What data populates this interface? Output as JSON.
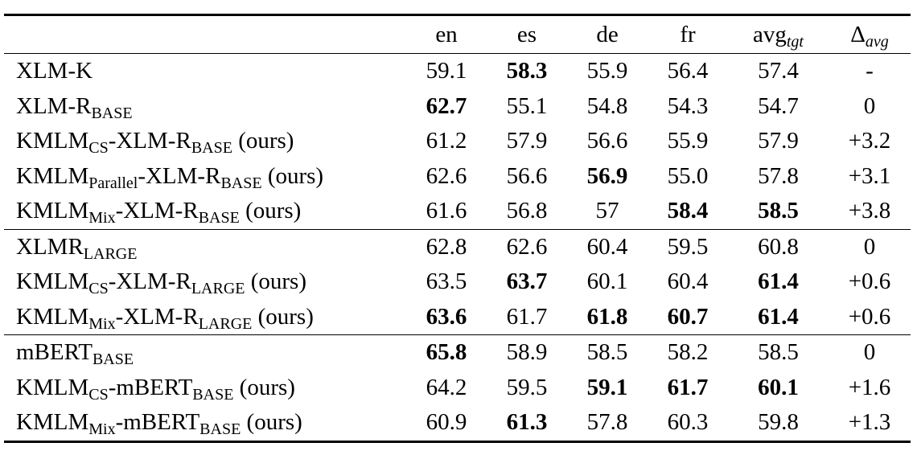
{
  "header": [
    [],
    [
      {
        "text": "en"
      }
    ],
    [
      {
        "text": "es"
      }
    ],
    [
      {
        "text": "de"
      }
    ],
    [
      {
        "text": "fr"
      }
    ],
    [
      {
        "text": "avg"
      },
      {
        "sub": "tgt",
        "italic": true
      }
    ],
    [
      {
        "text": "Δ"
      },
      {
        "sub": "avg",
        "italic": true
      }
    ]
  ],
  "groups": [
    {
      "rows": [
        {
          "name": [
            {
              "text": "XLM-K"
            }
          ],
          "cells": [
            "59.1",
            "58.3",
            "55.9",
            "56.4",
            "57.4",
            "-"
          ],
          "bold": [
            false,
            true,
            false,
            false,
            false,
            false
          ]
        },
        {
          "name": [
            {
              "text": "XLM-R"
            },
            {
              "sub": "BASE"
            }
          ],
          "cells": [
            "62.7",
            "55.1",
            "54.8",
            "54.3",
            "54.7",
            "0"
          ],
          "bold": [
            true,
            false,
            false,
            false,
            false,
            false
          ]
        },
        {
          "name": [
            {
              "text": "KMLM"
            },
            {
              "sub": "CS"
            },
            {
              "text": "-XLM-R"
            },
            {
              "sub": "BASE"
            },
            {
              "text": " (ours)"
            }
          ],
          "cells": [
            "61.2",
            "57.9",
            "56.6",
            "55.9",
            "57.9",
            "+3.2"
          ],
          "bold": [
            false,
            false,
            false,
            false,
            false,
            false
          ]
        },
        {
          "name": [
            {
              "text": "KMLM"
            },
            {
              "sub": "Parallel"
            },
            {
              "text": "-XLM-R"
            },
            {
              "sub": "BASE"
            },
            {
              "text": " (ours)"
            }
          ],
          "cells": [
            "62.6",
            "56.6",
            "56.9",
            "55.0",
            "57.8",
            "+3.1"
          ],
          "bold": [
            false,
            false,
            true,
            false,
            false,
            false
          ]
        },
        {
          "name": [
            {
              "text": "KMLM"
            },
            {
              "sub": "Mix"
            },
            {
              "text": "-XLM-R"
            },
            {
              "sub": "BASE"
            },
            {
              "text": " (ours)"
            }
          ],
          "cells": [
            "61.6",
            "56.8",
            "57",
            "58.4",
            "58.5",
            "+3.8"
          ],
          "bold": [
            false,
            false,
            false,
            true,
            true,
            false
          ]
        }
      ]
    },
    {
      "rows": [
        {
          "name": [
            {
              "text": "XLMR"
            },
            {
              "sub": "LARGE"
            }
          ],
          "cells": [
            "62.8",
            "62.6",
            "60.4",
            "59.5",
            "60.8",
            "0"
          ],
          "bold": [
            false,
            false,
            false,
            false,
            false,
            false
          ]
        },
        {
          "name": [
            {
              "text": "KMLM"
            },
            {
              "sub": "CS"
            },
            {
              "text": "-XLM-R"
            },
            {
              "sub": "LARGE"
            },
            {
              "text": " (ours)"
            }
          ],
          "cells": [
            "63.5",
            "63.7",
            "60.1",
            "60.4",
            "61.4",
            "+0.6"
          ],
          "bold": [
            false,
            true,
            false,
            false,
            true,
            false
          ]
        },
        {
          "name": [
            {
              "text": "KMLM"
            },
            {
              "sub": "Mix"
            },
            {
              "text": "-XLM-R"
            },
            {
              "sub": "LARGE"
            },
            {
              "text": " (ours)"
            }
          ],
          "cells": [
            "63.6",
            "61.7",
            "61.8",
            "60.7",
            "61.4",
            "+0.6"
          ],
          "bold": [
            true,
            false,
            true,
            true,
            true,
            false
          ]
        }
      ]
    },
    {
      "rows": [
        {
          "name": [
            {
              "text": "mBERT"
            },
            {
              "sub": "BASE"
            }
          ],
          "cells": [
            "65.8",
            "58.9",
            "58.5",
            "58.2",
            "58.5",
            "0"
          ],
          "bold": [
            true,
            false,
            false,
            false,
            false,
            false
          ]
        },
        {
          "name": [
            {
              "text": "KMLM"
            },
            {
              "sub": "CS"
            },
            {
              "text": "-mBERT"
            },
            {
              "sub": "BASE"
            },
            {
              "text": " (ours)"
            }
          ],
          "cells": [
            "64.2",
            "59.5",
            "59.1",
            "61.7",
            "60.1",
            "+1.6"
          ],
          "bold": [
            false,
            false,
            true,
            true,
            true,
            false
          ]
        },
        {
          "name": [
            {
              "text": "KMLM"
            },
            {
              "sub": "Mix"
            },
            {
              "text": "-mBERT"
            },
            {
              "sub": "BASE"
            },
            {
              "text": " (ours)"
            }
          ],
          "cells": [
            "60.9",
            "61.3",
            "57.8",
            "60.3",
            "59.8",
            "+1.3"
          ],
          "bold": [
            false,
            true,
            false,
            false,
            false,
            false
          ]
        }
      ]
    }
  ]
}
